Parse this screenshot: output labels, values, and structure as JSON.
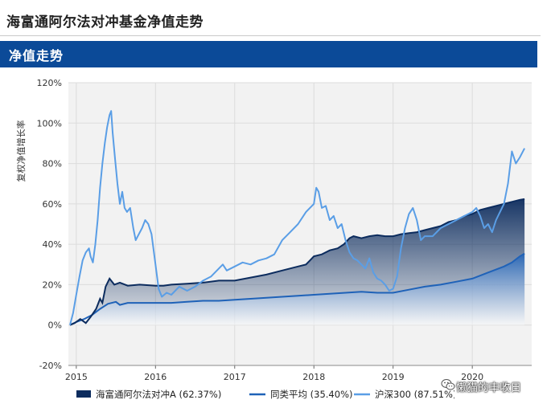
{
  "page": {
    "title": "海富通阿尔法对冲基金净值走势"
  },
  "section": {
    "title": "净值走势"
  },
  "watermark": {
    "icon": "wechat-icon",
    "text": "懒猫的丰收日"
  },
  "chart_data": {
    "type": "line",
    "ylabel": "复权净值增长率",
    "xlabel": "",
    "ylim": [
      -20,
      120
    ],
    "yticks": [
      -20,
      0,
      20,
      40,
      60,
      80,
      100,
      120
    ],
    "ytick_labels": [
      "-20%",
      "0%",
      "20%",
      "40%",
      "60%",
      "80%",
      "100%",
      "120%"
    ],
    "xlim": [
      2014.9,
      2020.75
    ],
    "xticks": [
      2015,
      2016,
      2017,
      2018,
      2019,
      2020
    ],
    "xtick_labels": [
      "2015",
      "2016",
      "2017",
      "2018",
      "2019",
      "2020"
    ],
    "grid": true,
    "legend": "bottom",
    "colors": {
      "fund": "#0c2c5e",
      "peer": "#1f62b8",
      "index": "#5a9ee6",
      "grid": "#dcdcdc",
      "plot_bg": "#f2f2f2"
    },
    "series": [
      {
        "name": "海富通阿尔法对冲A (62.37%)",
        "style": "area",
        "points": [
          [
            2014.92,
            0
          ],
          [
            2014.98,
            1
          ],
          [
            2015.05,
            3
          ],
          [
            2015.12,
            1
          ],
          [
            2015.18,
            4
          ],
          [
            2015.25,
            8
          ],
          [
            2015.3,
            13
          ],
          [
            2015.33,
            11
          ],
          [
            2015.37,
            19
          ],
          [
            2015.42,
            23
          ],
          [
            2015.48,
            20
          ],
          [
            2015.55,
            21
          ],
          [
            2015.65,
            19.5
          ],
          [
            2015.8,
            20
          ],
          [
            2016,
            19.5
          ],
          [
            2016.1,
            19.5
          ],
          [
            2016.2,
            20
          ],
          [
            2016.4,
            20.5
          ],
          [
            2016.6,
            21
          ],
          [
            2016.8,
            22
          ],
          [
            2017,
            22
          ],
          [
            2017.2,
            23.5
          ],
          [
            2017.4,
            25
          ],
          [
            2017.6,
            27
          ],
          [
            2017.8,
            29
          ],
          [
            2017.9,
            30
          ],
          [
            2017.95,
            32
          ],
          [
            2018,
            34
          ],
          [
            2018.1,
            35
          ],
          [
            2018.2,
            37
          ],
          [
            2018.3,
            38
          ],
          [
            2018.38,
            40
          ],
          [
            2018.45,
            43
          ],
          [
            2018.5,
            44
          ],
          [
            2018.6,
            43
          ],
          [
            2018.7,
            44
          ],
          [
            2018.8,
            44.5
          ],
          [
            2018.9,
            44
          ],
          [
            2019,
            44
          ],
          [
            2019.1,
            45
          ],
          [
            2019.2,
            45.5
          ],
          [
            2019.3,
            46
          ],
          [
            2019.4,
            47
          ],
          [
            2019.5,
            48
          ],
          [
            2019.6,
            49
          ],
          [
            2019.7,
            51
          ],
          [
            2019.8,
            52
          ],
          [
            2019.9,
            54
          ],
          [
            2020,
            55
          ],
          [
            2020.1,
            57
          ],
          [
            2020.2,
            58
          ],
          [
            2020.3,
            59
          ],
          [
            2020.4,
            60
          ],
          [
            2020.5,
            61
          ],
          [
            2020.6,
            62
          ],
          [
            2020.66,
            62.37
          ]
        ]
      },
      {
        "name": "同类平均 (35.40%)",
        "style": "area",
        "points": [
          [
            2014.92,
            0
          ],
          [
            2015,
            1.5
          ],
          [
            2015.1,
            3
          ],
          [
            2015.2,
            5
          ],
          [
            2015.3,
            8
          ],
          [
            2015.4,
            10.5
          ],
          [
            2015.5,
            11.5
          ],
          [
            2015.55,
            10
          ],
          [
            2015.65,
            11
          ],
          [
            2015.8,
            11
          ],
          [
            2016,
            11
          ],
          [
            2016.2,
            11
          ],
          [
            2016.4,
            11.5
          ],
          [
            2016.6,
            12
          ],
          [
            2016.8,
            12
          ],
          [
            2017,
            12.5
          ],
          [
            2017.2,
            13
          ],
          [
            2017.4,
            13.5
          ],
          [
            2017.6,
            14
          ],
          [
            2017.8,
            14.5
          ],
          [
            2018,
            15
          ],
          [
            2018.2,
            15.5
          ],
          [
            2018.4,
            16
          ],
          [
            2018.6,
            16.5
          ],
          [
            2018.8,
            16
          ],
          [
            2019,
            16
          ],
          [
            2019.2,
            17.5
          ],
          [
            2019.4,
            19
          ],
          [
            2019.6,
            20
          ],
          [
            2019.8,
            21.5
          ],
          [
            2020,
            23
          ],
          [
            2020.2,
            26
          ],
          [
            2020.4,
            29
          ],
          [
            2020.5,
            31
          ],
          [
            2020.6,
            34
          ],
          [
            2020.66,
            35.4
          ]
        ]
      },
      {
        "name": "沪深300 (87.51%)",
        "style": "line",
        "points": [
          [
            2014.92,
            0
          ],
          [
            2014.96,
            6
          ],
          [
            2015,
            15
          ],
          [
            2015.04,
            24
          ],
          [
            2015.08,
            32
          ],
          [
            2015.12,
            36
          ],
          [
            2015.16,
            38
          ],
          [
            2015.18,
            34
          ],
          [
            2015.21,
            31
          ],
          [
            2015.24,
            40
          ],
          [
            2015.27,
            52
          ],
          [
            2015.3,
            68
          ],
          [
            2015.33,
            80
          ],
          [
            2015.36,
            90
          ],
          [
            2015.39,
            98
          ],
          [
            2015.42,
            104
          ],
          [
            2015.44,
            106
          ],
          [
            2015.46,
            95
          ],
          [
            2015.49,
            82
          ],
          [
            2015.52,
            70
          ],
          [
            2015.55,
            60
          ],
          [
            2015.58,
            66
          ],
          [
            2015.61,
            58
          ],
          [
            2015.64,
            56
          ],
          [
            2015.68,
            58
          ],
          [
            2015.72,
            48
          ],
          [
            2015.75,
            42
          ],
          [
            2015.79,
            45
          ],
          [
            2015.83,
            48
          ],
          [
            2015.87,
            52
          ],
          [
            2015.91,
            50
          ],
          [
            2015.95,
            45
          ],
          [
            2016,
            30
          ],
          [
            2016.04,
            18
          ],
          [
            2016.08,
            14
          ],
          [
            2016.14,
            16
          ],
          [
            2016.2,
            15
          ],
          [
            2016.3,
            19
          ],
          [
            2016.4,
            17
          ],
          [
            2016.5,
            19
          ],
          [
            2016.6,
            22
          ],
          [
            2016.7,
            24
          ],
          [
            2016.8,
            28
          ],
          [
            2016.85,
            30
          ],
          [
            2016.9,
            27
          ],
          [
            2017,
            29
          ],
          [
            2017.1,
            31
          ],
          [
            2017.2,
            30
          ],
          [
            2017.3,
            32
          ],
          [
            2017.4,
            33
          ],
          [
            2017.5,
            35
          ],
          [
            2017.6,
            42
          ],
          [
            2017.7,
            46
          ],
          [
            2017.8,
            50
          ],
          [
            2017.9,
            56
          ],
          [
            2018,
            60
          ],
          [
            2018.03,
            68
          ],
          [
            2018.06,
            66
          ],
          [
            2018.1,
            58
          ],
          [
            2018.15,
            59
          ],
          [
            2018.2,
            52
          ],
          [
            2018.25,
            54
          ],
          [
            2018.3,
            48
          ],
          [
            2018.35,
            50
          ],
          [
            2018.4,
            42
          ],
          [
            2018.45,
            36
          ],
          [
            2018.5,
            33
          ],
          [
            2018.55,
            32
          ],
          [
            2018.6,
            30
          ],
          [
            2018.65,
            28
          ],
          [
            2018.7,
            33
          ],
          [
            2018.75,
            26
          ],
          [
            2018.8,
            23
          ],
          [
            2018.85,
            22
          ],
          [
            2018.9,
            20
          ],
          [
            2018.95,
            17
          ],
          [
            2019,
            18
          ],
          [
            2019.05,
            24
          ],
          [
            2019.1,
            38
          ],
          [
            2019.15,
            48
          ],
          [
            2019.2,
            55
          ],
          [
            2019.25,
            58
          ],
          [
            2019.3,
            52
          ],
          [
            2019.35,
            42
          ],
          [
            2019.4,
            44
          ],
          [
            2019.5,
            44
          ],
          [
            2019.6,
            48
          ],
          [
            2019.7,
            50
          ],
          [
            2019.8,
            52
          ],
          [
            2019.9,
            54
          ],
          [
            2020,
            56
          ],
          [
            2020.05,
            58
          ],
          [
            2020.1,
            54
          ],
          [
            2020.15,
            48
          ],
          [
            2020.2,
            50
          ],
          [
            2020.25,
            46
          ],
          [
            2020.3,
            52
          ],
          [
            2020.35,
            56
          ],
          [
            2020.4,
            60
          ],
          [
            2020.45,
            70
          ],
          [
            2020.5,
            86
          ],
          [
            2020.55,
            80
          ],
          [
            2020.6,
            83
          ],
          [
            2020.66,
            87.51
          ]
        ]
      }
    ]
  }
}
